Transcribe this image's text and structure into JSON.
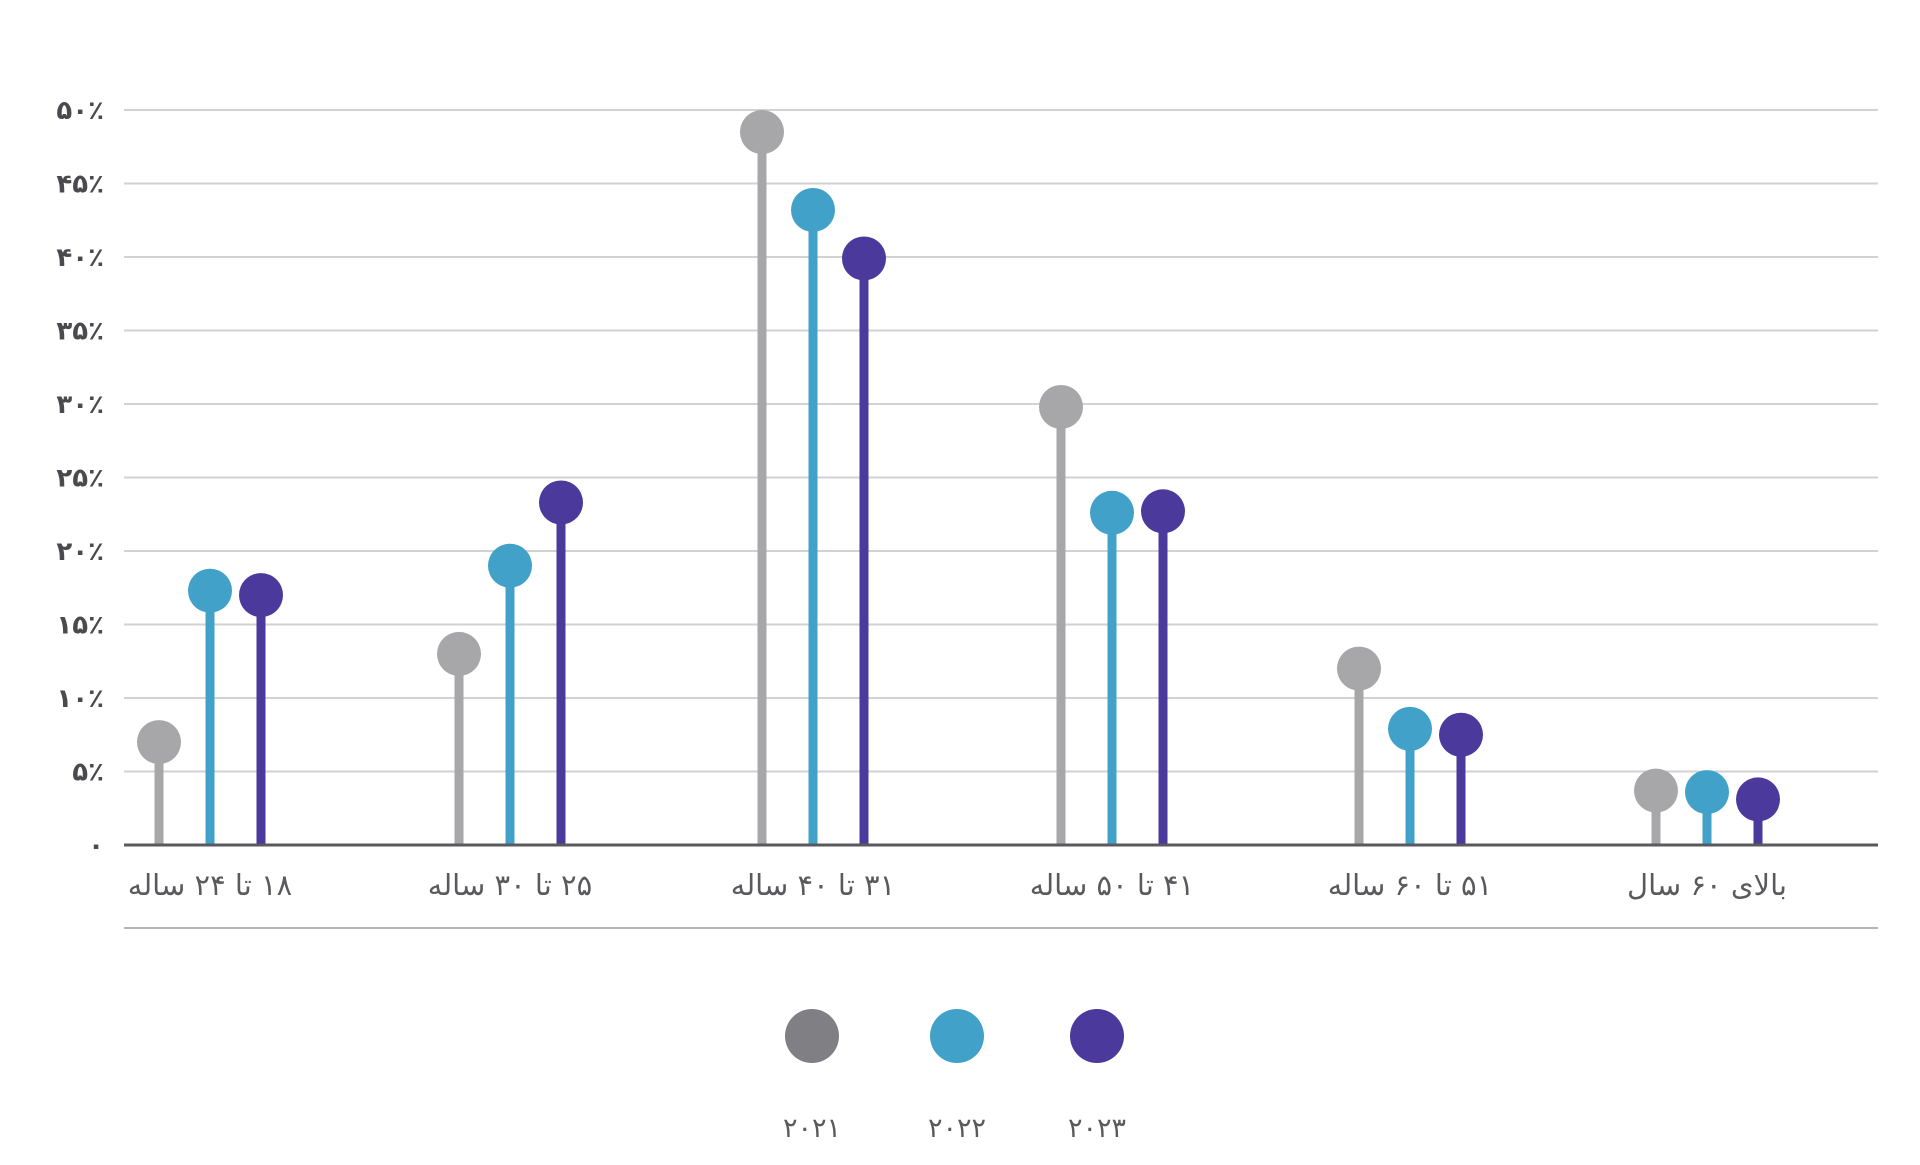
{
  "chart_data": {
    "type": "lollipop",
    "title": "",
    "xlabel": "",
    "ylabel": "",
    "ylim": [
      0,
      50
    ],
    "yticks": [
      0,
      5,
      10,
      15,
      20,
      25,
      30,
      35,
      40,
      45,
      50
    ],
    "ytick_labels": [
      "۰",
      "۵٪",
      "۱۰٪",
      "۱۵٪",
      "۲۰٪",
      "۲۵٪",
      "۳۰٪",
      "۳۵٪",
      "۴۰٪",
      "۴۵٪",
      "۵۰٪"
    ],
    "grid": true,
    "legend_position": "bottom-center",
    "categories": [
      "۱۸ تا ۲۴ ساله",
      "۲۵ تا ۳۰ ساله",
      "۳۱ تا ۴۰ ساله",
      "۴۱ تا ۵۰ ساله",
      "۵۱ تا ۶۰ ساله",
      "بالای ۶۰ سال"
    ],
    "series": [
      {
        "name": "۲۰۲۱",
        "color": "#a7a7a9",
        "legend_color": "#808084",
        "values": [
          7,
          13,
          48.5,
          29.8,
          12,
          3.7
        ]
      },
      {
        "name": "۲۰۲۲",
        "color": "#42a1c9",
        "legend_color": "#42a1c9",
        "values": [
          17.3,
          19,
          43.2,
          22.6,
          7.9,
          3.6
        ]
      },
      {
        "name": "۲۰۲۳",
        "color": "#4b3a9c",
        "legend_color": "#4b3a9c",
        "values": [
          17,
          23.3,
          39.9,
          22.7,
          7.5,
          3.1
        ]
      }
    ]
  }
}
